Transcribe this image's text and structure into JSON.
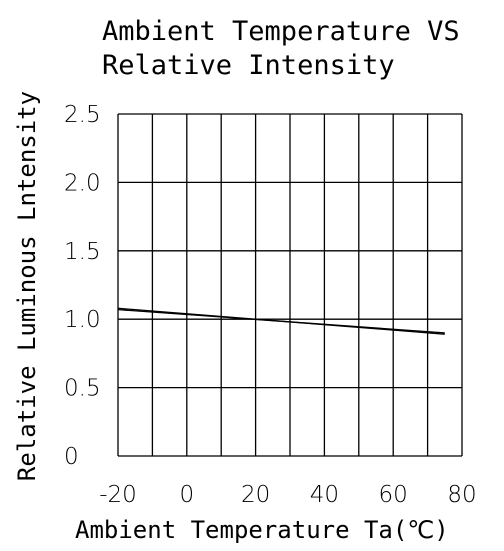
{
  "chart_data": {
    "type": "line",
    "title_line1": "Ambient Temperature VS",
    "title_line2": "Relative Intensity",
    "xlabel": "Ambient Temperature Ta(℃)",
    "ylabel": "Relative Luminous Lntensity",
    "xlim": [
      -20,
      80
    ],
    "ylim": [
      0,
      2.5
    ],
    "x_ticks": [
      -20,
      0,
      20,
      40,
      60,
      80
    ],
    "x_tick_labels": [
      "-20",
      "0",
      "20",
      "40",
      "60",
      "80"
    ],
    "y_ticks": [
      0,
      0.5,
      1.0,
      1.5,
      2.0,
      2.5
    ],
    "y_tick_labels": [
      "0",
      "0.5",
      "1.0",
      "1.5",
      "2.0",
      "2.5"
    ],
    "grid": true,
    "series": [
      {
        "x": [
          -20,
          75
        ],
        "y": [
          1.08,
          0.89
        ]
      },
      {
        "x": [
          -20,
          75
        ],
        "y": [
          1.07,
          0.9
        ]
      }
    ]
  }
}
